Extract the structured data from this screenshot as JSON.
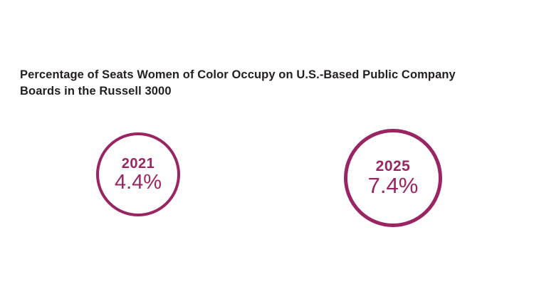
{
  "header": {
    "line1": "Percentage of Seats Women of Color Occupy on U.S.-Based Public Company",
    "line2": "Boards in the Russell 3000"
  },
  "colors": {
    "accent": "#9A2563",
    "title_text": "#231F20",
    "background": "#FFFFFF"
  },
  "circles": [
    {
      "year": "2021",
      "value": "4.4%"
    },
    {
      "year": "2025",
      "value": "7.4%"
    }
  ],
  "chart_data": {
    "type": "bar",
    "variant": "circle-comparison-infographic",
    "title": "Percentage of Seats Women of Color Occupy on U.S.-Based Public Company Boards in the Russell 3000",
    "categories": [
      "2021",
      "2025"
    ],
    "values": [
      4.4,
      7.4
    ],
    "value_labels": [
      "4.4%",
      "7.4%"
    ],
    "unit": "%",
    "legend": "none",
    "grid": false,
    "notes": "Two outlined circles sized roughly proportional to value; year in bold above percentage inside each circle; accent color #9A2563 on white background"
  }
}
